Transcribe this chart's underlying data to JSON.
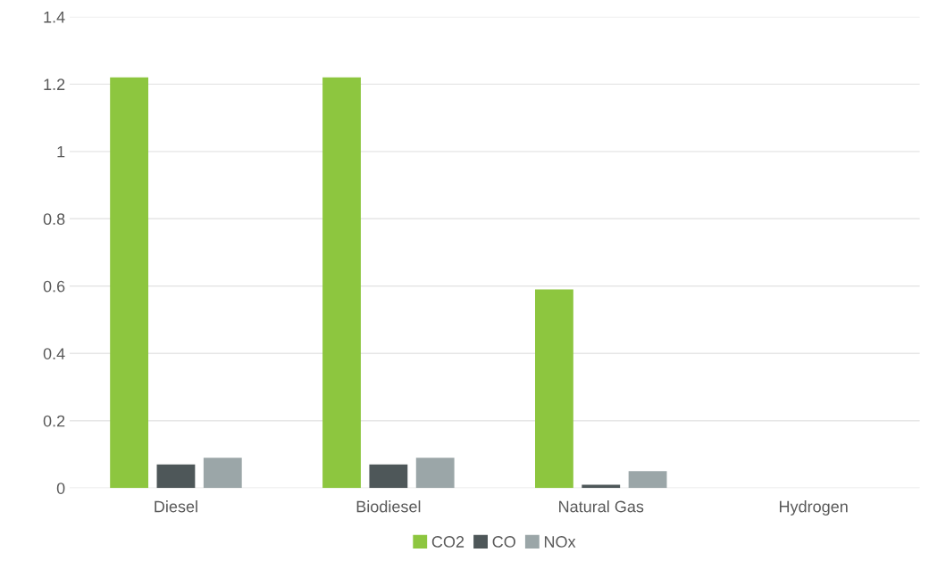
{
  "chart_data": {
    "type": "bar",
    "categories": [
      "Diesel",
      "Biodiesel",
      "Natural Gas",
      "Hydrogen"
    ],
    "series": [
      {
        "name": "CO2",
        "color": "#8dc63f",
        "values": [
          1.22,
          1.22,
          0.59,
          0
        ]
      },
      {
        "name": "CO",
        "color": "#4e5759",
        "values": [
          0.07,
          0.07,
          0.01,
          0
        ]
      },
      {
        "name": "NOx",
        "color": "#9ba6a8",
        "values": [
          0.09,
          0.09,
          0.05,
          0
        ]
      }
    ],
    "ylim": [
      0,
      1.4
    ],
    "yticks": [
      0,
      {
        "value": 0.2,
        "label": "0.2"
      },
      {
        "value": 0.4,
        "label": "0.4"
      },
      {
        "value": 0.6,
        "label": "0.6"
      },
      {
        "value": 0.8,
        "label": "0.8"
      },
      1,
      {
        "value": 1.2,
        "label": "1.2"
      },
      {
        "value": 1.4,
        "label": "1.4"
      }
    ],
    "grid": "y",
    "legend": "bottom"
  }
}
